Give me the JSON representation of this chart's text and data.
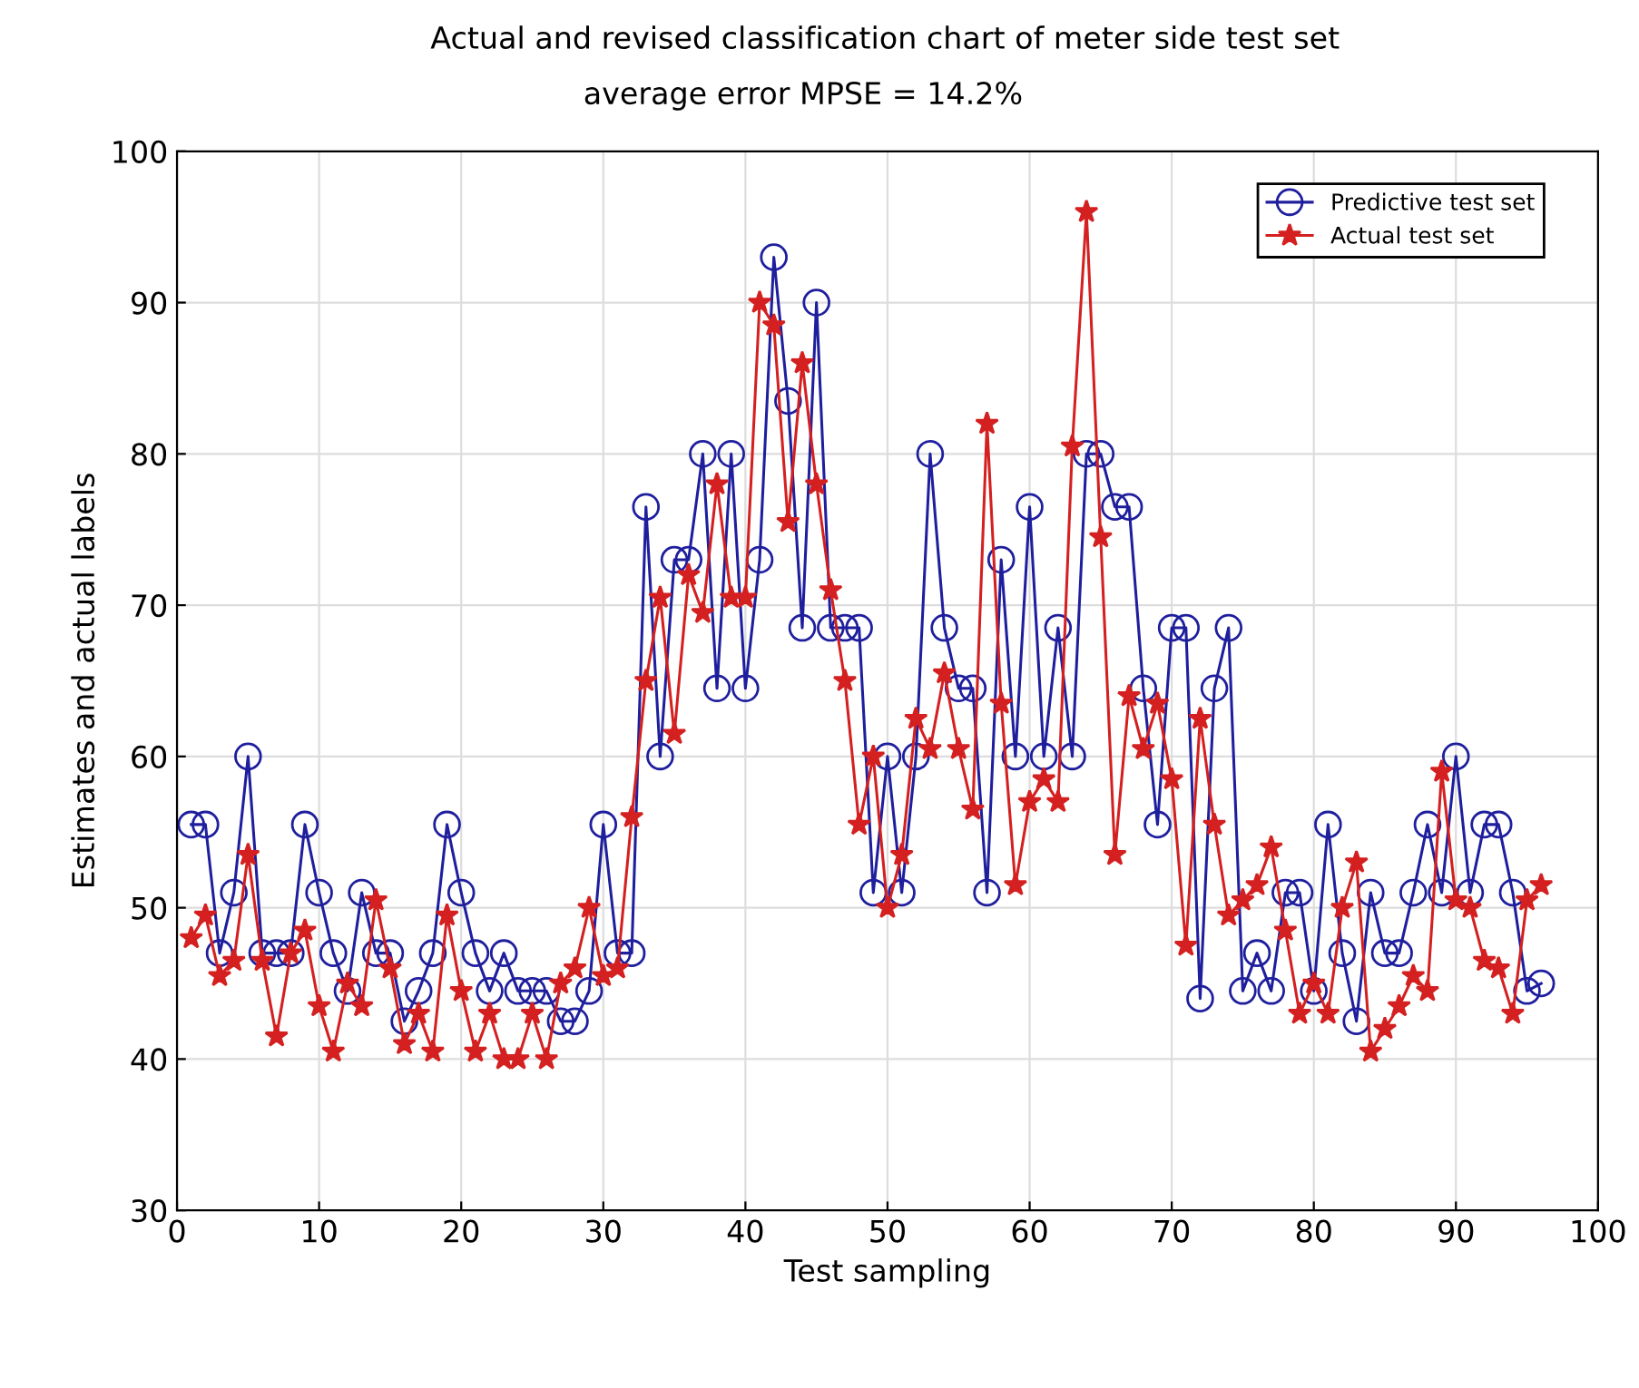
{
  "chart_data": {
    "type": "line",
    "title": "Actual and revised classification chart of meter side test set",
    "subtitle": "average error MPSE = 14.2%",
    "xlabel": "Test sampling",
    "ylabel": "Estimates and actual labels",
    "x": [
      1,
      2,
      3,
      4,
      5,
      6,
      7,
      8,
      9,
      10,
      11,
      12,
      13,
      14,
      15,
      16,
      17,
      18,
      19,
      20,
      21,
      22,
      23,
      24,
      25,
      26,
      27,
      28,
      29,
      30,
      31,
      32,
      33,
      34,
      35,
      36,
      37,
      38,
      39,
      40,
      41,
      42,
      43,
      44,
      45,
      46,
      47,
      48,
      49,
      50,
      51,
      52,
      53,
      54,
      55,
      56,
      57,
      58,
      59,
      60,
      61,
      62,
      63,
      64,
      65,
      66,
      67,
      68,
      69,
      70,
      71,
      72,
      73,
      74,
      75,
      76,
      77,
      78,
      79,
      80,
      81,
      82,
      83,
      84,
      85,
      86,
      87,
      88,
      89,
      90,
      91,
      92,
      93,
      94,
      95,
      96
    ],
    "series": [
      {
        "name": "Predictive test set",
        "color": "#1f1f9e",
        "marker": "circle",
        "values": [
          55.5,
          55.5,
          47,
          51,
          60,
          47,
          47,
          47,
          55.5,
          51,
          47,
          44.5,
          51,
          47,
          47,
          42.5,
          44.5,
          47,
          55.5,
          51,
          47,
          44.5,
          47,
          44.5,
          44.5,
          44.5,
          42.5,
          42.5,
          44.5,
          55.5,
          47,
          47,
          76.5,
          60,
          73,
          73,
          80,
          64.5,
          80,
          64.5,
          73,
          93,
          83.5,
          68.5,
          90,
          68.5,
          68.5,
          68.5,
          51,
          60,
          51,
          60,
          80,
          68.5,
          64.5,
          64.5,
          51,
          73,
          60,
          76.5,
          60,
          68.5,
          60,
          80,
          80,
          76.5,
          76.5,
          64.5,
          55.5,
          68.5,
          68.5,
          44,
          64.5,
          68.5,
          44.5,
          47,
          44.5,
          51,
          51,
          44.5,
          55.5,
          47,
          42.5,
          51,
          47,
          47,
          51,
          55.5,
          51,
          60,
          51,
          55.5,
          55.5,
          51,
          44.5,
          45
        ]
      },
      {
        "name": "Actual test set",
        "color": "#d42020",
        "marker": "star",
        "values": [
          48,
          49.5,
          45.5,
          46.5,
          53.5,
          46.5,
          41.5,
          47,
          48.5,
          43.5,
          40.5,
          45,
          43.5,
          50.5,
          46,
          41,
          43,
          40.5,
          49.5,
          44.5,
          40.5,
          43,
          40,
          40,
          43,
          40,
          45,
          46,
          50,
          45.5,
          46,
          56,
          65,
          70.5,
          61.5,
          72,
          69.5,
          78,
          70.5,
          70.5,
          90,
          88.5,
          75.5,
          86,
          78,
          71,
          65,
          55.5,
          60,
          50,
          53.5,
          62.5,
          60.5,
          65.5,
          60.5,
          56.5,
          82,
          63.5,
          51.5,
          57,
          58.5,
          57,
          80.5,
          96,
          74.5,
          53.5,
          64,
          60.5,
          63.5,
          58.5,
          47.5,
          62.5,
          55.5,
          49.5,
          50.5,
          51.5,
          54,
          48.5,
          43,
          45,
          43,
          50,
          53,
          40.5,
          42,
          43.5,
          45.5,
          44.5,
          59,
          50.5,
          50,
          46.5,
          46,
          43,
          50.5,
          51.5
        ]
      }
    ],
    "xlim": [
      0,
      100
    ],
    "xticks": [
      0,
      10,
      20,
      30,
      40,
      50,
      60,
      70,
      80,
      90,
      100
    ],
    "ylim": [
      30,
      100
    ],
    "yticks": [
      30,
      40,
      50,
      60,
      70,
      80,
      90,
      100
    ],
    "grid": true,
    "legend": "top right",
    "line_style": "solid"
  }
}
